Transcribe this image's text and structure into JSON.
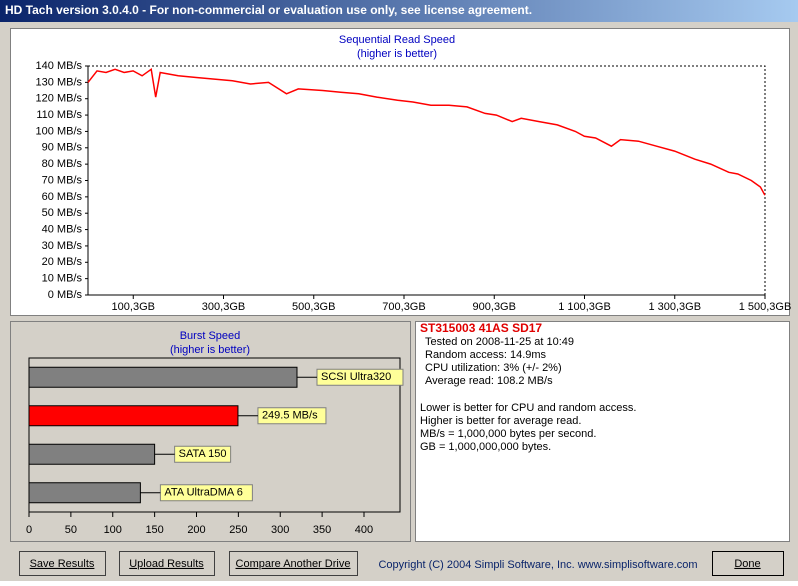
{
  "window": {
    "title": "HD Tach version 3.0.4.0  - For non-commercial or evaluation use only, see license agreement."
  },
  "chart_data": [
    {
      "type": "line",
      "title": "Sequential Read Speed",
      "subtitle": "(higher is better)",
      "color": "#ff0000",
      "x": [
        0,
        20,
        40,
        60,
        80,
        100,
        120,
        140,
        150,
        160,
        200,
        240,
        280,
        320,
        360,
        400,
        440,
        466,
        520,
        560,
        600,
        640,
        686,
        720,
        760,
        800,
        840,
        880,
        905,
        940,
        960,
        1000,
        1040,
        1080,
        1100,
        1125,
        1160,
        1180,
        1220,
        1260,
        1300,
        1345,
        1380,
        1420,
        1440,
        1470,
        1490,
        1500
      ],
      "values": [
        130,
        137,
        136,
        138,
        136,
        137,
        134,
        138,
        121,
        136,
        134,
        133,
        132,
        131,
        129,
        130,
        123,
        126,
        125,
        124,
        123,
        121,
        119,
        118,
        116,
        116,
        115,
        111,
        110,
        106,
        108,
        106,
        104,
        100,
        97,
        96,
        91,
        95,
        94,
        91,
        88,
        83,
        80,
        75,
        74,
        70,
        66,
        61
      ],
      "xlim": [
        0,
        1500.3
      ],
      "xticks": [
        {
          "value": 100.3,
          "label": "100,3GB"
        },
        {
          "value": 300.3,
          "label": "300,3GB"
        },
        {
          "value": 500.3,
          "label": "500,3GB"
        },
        {
          "value": 700.3,
          "label": "700,3GB"
        },
        {
          "value": 900.3,
          "label": "900,3GB"
        },
        {
          "value": 1100.3,
          "label": "1 100,3GB"
        },
        {
          "value": 1300.3,
          "label": "1 300,3GB"
        },
        {
          "value": 1500.3,
          "label": "1 500,3GB"
        }
      ],
      "ylim": [
        0,
        140
      ],
      "yticks": [
        {
          "value": 0,
          "label": "0 MB/s"
        },
        {
          "value": 10,
          "label": "10 MB/s"
        },
        {
          "value": 20,
          "label": "20 MB/s"
        },
        {
          "value": 30,
          "label": "30 MB/s"
        },
        {
          "value": 40,
          "label": "40 MB/s"
        },
        {
          "value": 50,
          "label": "50 MB/s"
        },
        {
          "value": 60,
          "label": "60 MB/s"
        },
        {
          "value": 70,
          "label": "70 MB/s"
        },
        {
          "value": 80,
          "label": "80 MB/s"
        },
        {
          "value": 90,
          "label": "90 MB/s"
        },
        {
          "value": 100,
          "label": "100 MB/s"
        },
        {
          "value": 110,
          "label": "110 MB/s"
        },
        {
          "value": 120,
          "label": "120 MB/s"
        },
        {
          "value": 130,
          "label": "130 MB/s"
        },
        {
          "value": 140,
          "label": "140 MB/s"
        }
      ]
    },
    {
      "type": "hbar",
      "title": "Burst Speed",
      "subtitle": "(higher is better)",
      "categories": [
        "SCSI Ultra320",
        null,
        "SATA 150",
        "ATA UltraDMA 6"
      ],
      "values": [
        320,
        249.5,
        150,
        133
      ],
      "value_labels": [
        null,
        "249.5 MB/s",
        null,
        null
      ],
      "colors": [
        "#808080",
        "#ff0000",
        "#808080",
        "#808080"
      ],
      "xlim": [
        0,
        443
      ],
      "xticks": [
        0,
        50,
        100,
        150,
        200,
        250,
        300,
        350,
        400
      ]
    }
  ],
  "info": {
    "drive": "ST315003 41AS SD17",
    "details": [
      "Tested on 2008-11-25 at 10:49",
      "Random access: 14.9ms",
      "CPU utilization: 3% (+/- 2%)",
      "Average read: 108.2 MB/s"
    ],
    "notes": [
      "Lower is better for CPU and random access.",
      "Higher is better for average read.",
      "MB/s = 1,000,000 bytes per second.",
      "GB = 1,000,000,000 bytes."
    ]
  },
  "buttons": [
    "Save Results",
    "Upload Results",
    "Compare Another Drive",
    "Done"
  ],
  "copyright": "Copyright (C) 2004 Simpli Software, Inc. www.simplisoftware.com"
}
